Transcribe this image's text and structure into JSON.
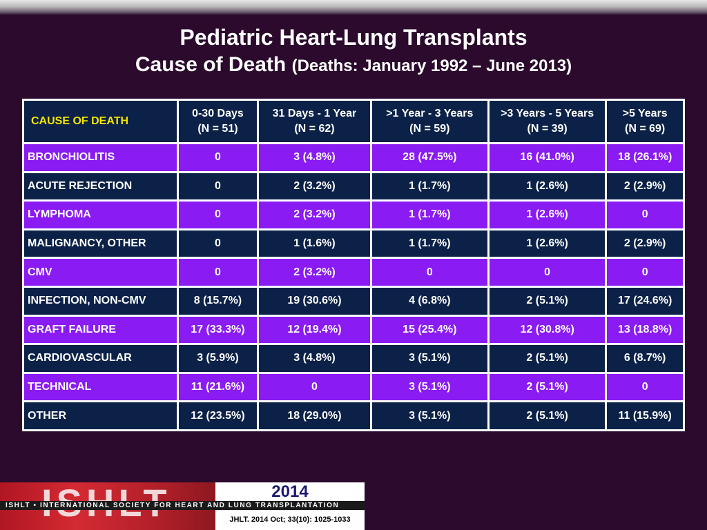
{
  "title": {
    "line1": "Pediatric Heart-Lung Transplants",
    "line2_main": "Cause of Death",
    "line2_paren": "(Deaths: January 1992 – June 2013)"
  },
  "table": {
    "corner": "CAUSE OF DEATH",
    "columns": [
      {
        "label": "0-30 Days",
        "n": "(N = 51)"
      },
      {
        "label": "31 Days - 1 Year",
        "n": "(N = 62)"
      },
      {
        "label": ">1 Year - 3 Years",
        "n": "(N = 59)"
      },
      {
        "label": ">3 Years - 5 Years",
        "n": "(N = 39)"
      },
      {
        "label": ">5 Years",
        "n": "(N = 69)"
      }
    ],
    "rows": [
      {
        "cause": "BRONCHIOLITIS",
        "values": [
          "0",
          "3 (4.8%)",
          "28 (47.5%)",
          "16 (41.0%)",
          "18 (26.1%)"
        ]
      },
      {
        "cause": "ACUTE REJECTION",
        "values": [
          "0",
          "2 (3.2%)",
          "1 (1.7%)",
          "1 (2.6%)",
          "2 (2.9%)"
        ]
      },
      {
        "cause": "LYMPHOMA",
        "values": [
          "0",
          "2 (3.2%)",
          "1 (1.7%)",
          "1 (2.6%)",
          "0"
        ]
      },
      {
        "cause": "MALIGNANCY, OTHER",
        "values": [
          "0",
          "1 (1.6%)",
          "1 (1.7%)",
          "1 (2.6%)",
          "2 (2.9%)"
        ]
      },
      {
        "cause": "CMV",
        "values": [
          "0",
          "2 (3.2%)",
          "0",
          "0",
          "0"
        ]
      },
      {
        "cause": "INFECTION, NON-CMV",
        "values": [
          "8 (15.7%)",
          "19 (30.6%)",
          "4 (6.8%)",
          "2 (5.1%)",
          "17 (24.6%)"
        ]
      },
      {
        "cause": "GRAFT FAILURE",
        "values": [
          "17 (33.3%)",
          "12 (19.4%)",
          "15 (25.4%)",
          "12 (30.8%)",
          "13 (18.8%)"
        ]
      },
      {
        "cause": "CARDIOVASCULAR",
        "values": [
          "3 (5.9%)",
          "3 (4.8%)",
          "3 (5.1%)",
          "2 (5.1%)",
          "6 (8.7%)"
        ]
      },
      {
        "cause": "TECHNICAL",
        "values": [
          "11 (21.6%)",
          "0",
          "3 (5.1%)",
          "2 (5.1%)",
          "0"
        ]
      },
      {
        "cause": "OTHER",
        "values": [
          "12 (23.5%)",
          "18 (29.0%)",
          "3 (5.1%)",
          "2 (5.1%)",
          "11 (15.9%)"
        ]
      }
    ]
  },
  "footer": {
    "logo": "ISHLT",
    "society": "ISHLT • INTERNATIONAL SOCIETY FOR HEART AND LUNG TRANSPLANTATION",
    "year": "2014",
    "citation": "JHLT. 2014 Oct; 33(10): 1025-1033"
  },
  "colors": {
    "background": "#2b0a2d",
    "header_navy": "#0b2148",
    "row_purple": "#8a1bf2",
    "corner_yellow": "#f5e400"
  }
}
